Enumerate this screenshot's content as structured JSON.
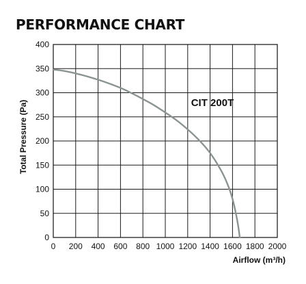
{
  "chart_data": {
    "type": "line",
    "title": "PERFORMANCE CHART",
    "xlabel": "Airflow (m³/h)",
    "ylabel": "Total Pressure (Pa)",
    "xlim": [
      0,
      2000
    ],
    "ylim": [
      0,
      400
    ],
    "x_ticks": [
      0,
      200,
      400,
      600,
      800,
      1000,
      1200,
      1400,
      1600,
      1800,
      2000
    ],
    "y_ticks": [
      0,
      50,
      100,
      150,
      200,
      250,
      300,
      350,
      400
    ],
    "grid": true,
    "series": [
      {
        "name": "CIT 200T",
        "color": "#8a9490",
        "x": [
          0,
          100,
          200,
          300,
          400,
          500,
          600,
          700,
          800,
          900,
          1000,
          1100,
          1200,
          1300,
          1400,
          1500,
          1560,
          1600,
          1630,
          1650,
          1665
        ],
        "y": [
          348,
          345,
          340,
          334,
          327,
          319,
          310,
          299,
          287,
          274,
          259,
          243,
          224,
          202,
          175,
          138,
          108,
          80,
          50,
          25,
          0
        ]
      }
    ],
    "series_label_at": {
      "x": 1230,
      "y": 272
    }
  }
}
